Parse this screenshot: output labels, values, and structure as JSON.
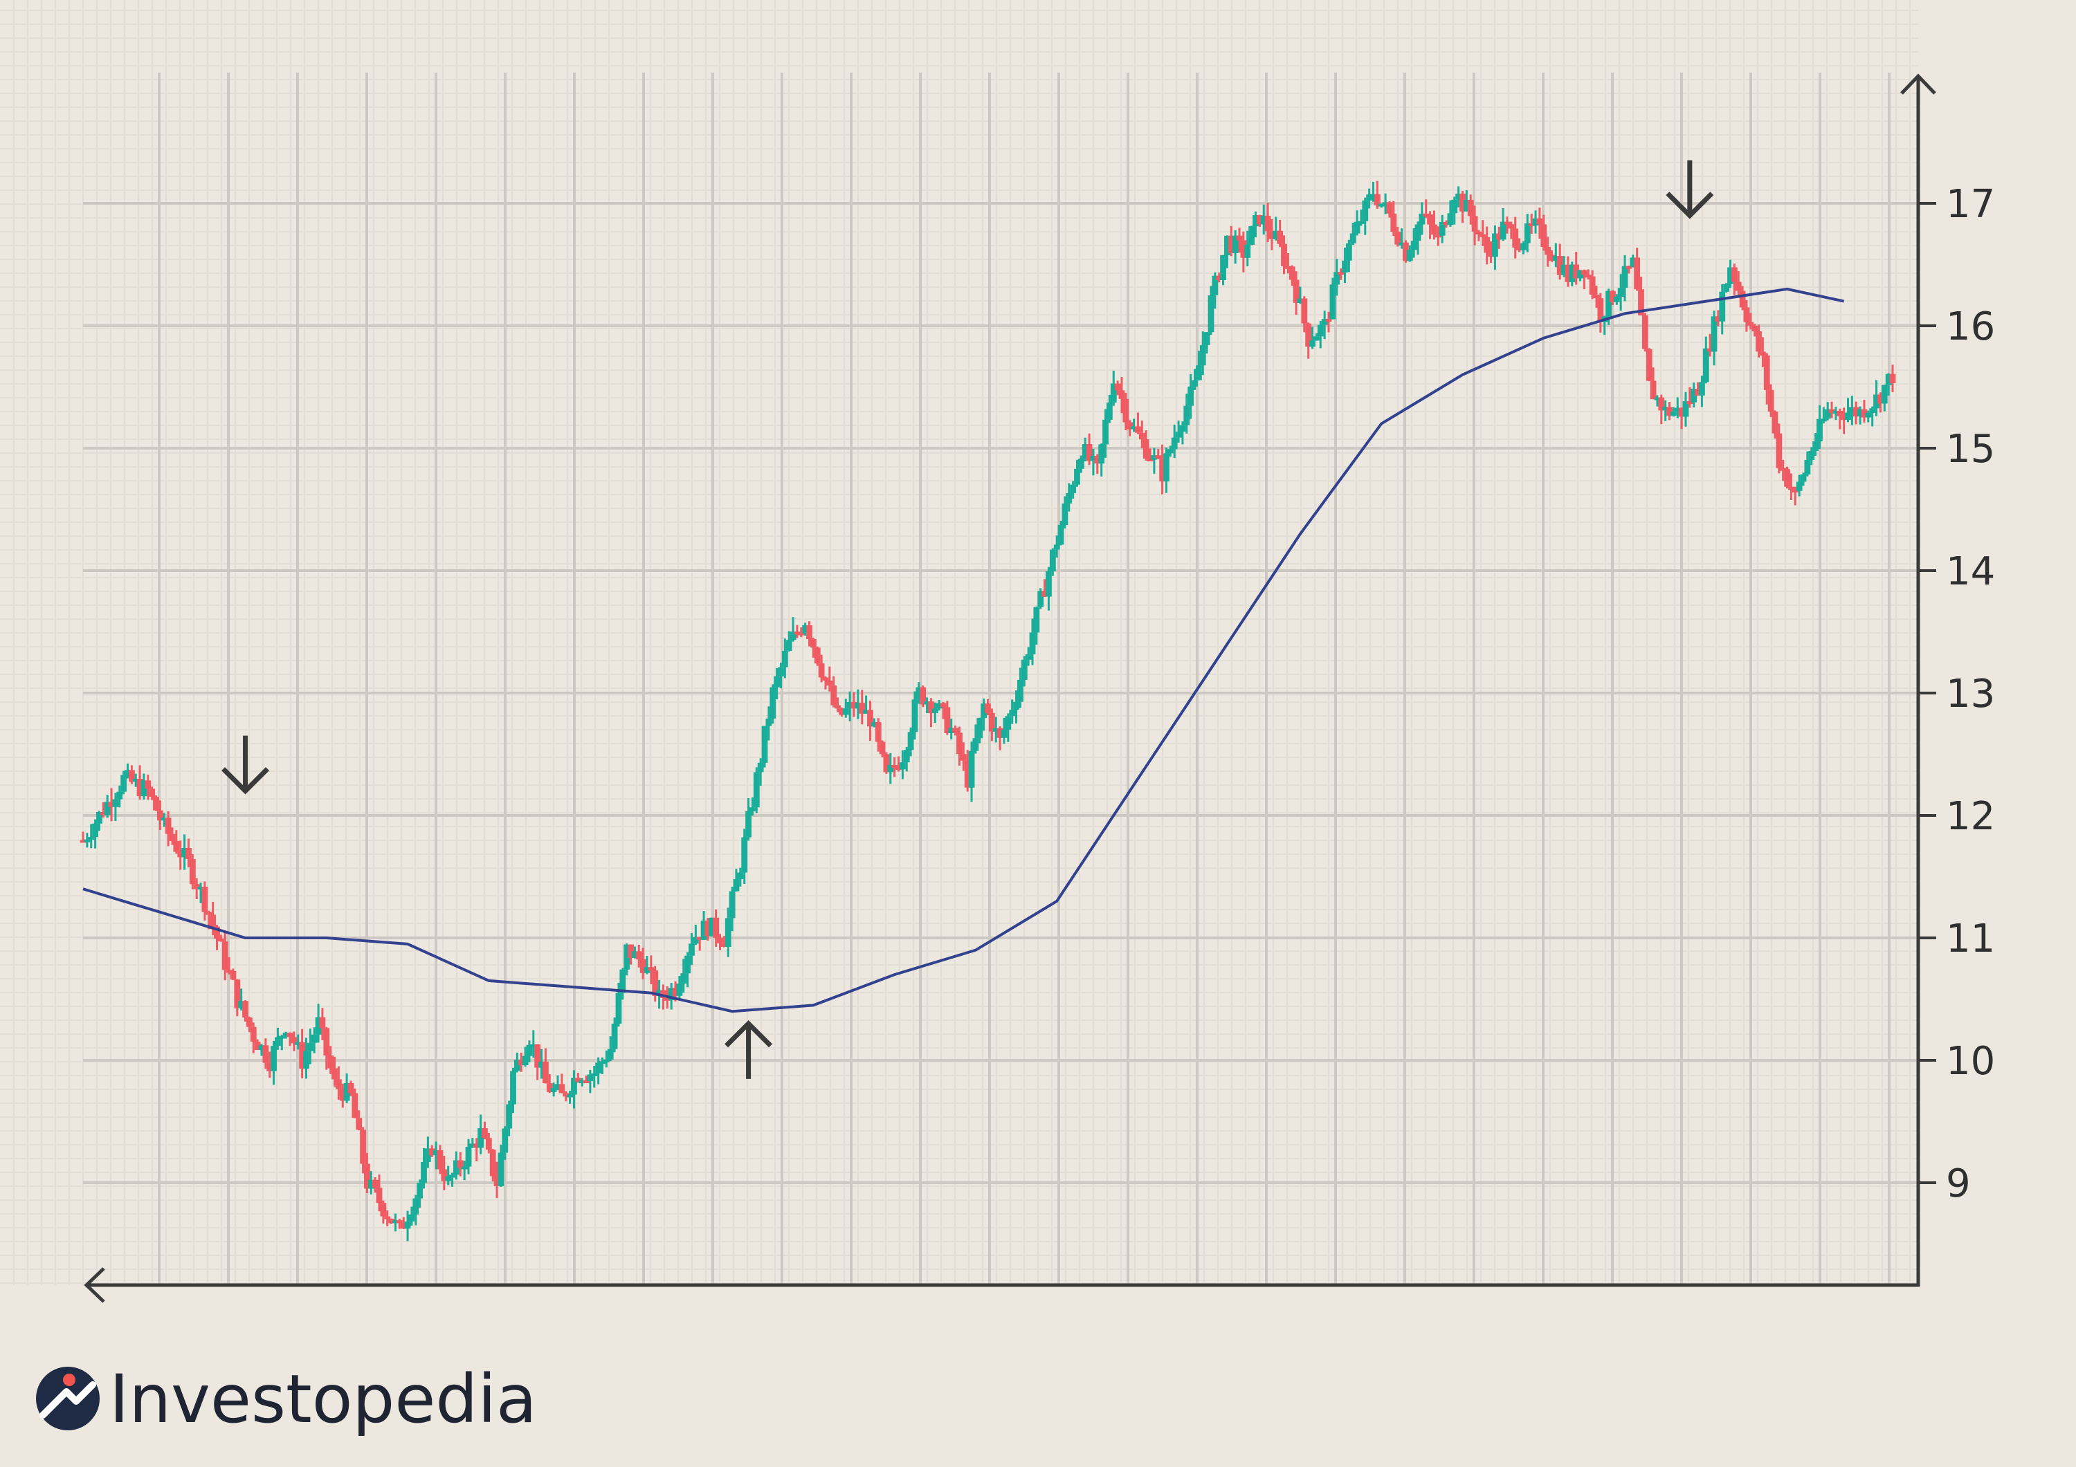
{
  "brand": {
    "name": "Investopedia"
  },
  "colors": {
    "background": "#ece7df",
    "minor_grid": "#e2ddd5",
    "major_grid": "#cdc8c1",
    "axis": "#3a3a3a",
    "up_candle": "#19ad9a",
    "down_candle": "#ef5b63",
    "moving_average": "#32428e",
    "logo_circle": "#1f2a44",
    "logo_accent": "#f2554d"
  },
  "chart_data": {
    "type": "candlestick",
    "title": "",
    "xlabel": "",
    "ylabel": "",
    "ylim": [
      8.2,
      17.9
    ],
    "y_ticks": [
      9,
      10,
      11,
      12,
      13,
      14,
      15,
      16,
      17
    ],
    "grid": true,
    "series": [
      {
        "kind": "price",
        "points": [
          [
            0,
            11.8
          ],
          [
            3,
            12.1
          ],
          [
            5,
            12.3
          ],
          [
            8,
            12.2
          ],
          [
            10,
            11.9
          ],
          [
            13,
            11.6
          ],
          [
            15,
            11.3
          ],
          [
            17,
            10.9
          ],
          [
            19,
            10.5
          ],
          [
            21,
            10.2
          ],
          [
            23,
            10.0
          ],
          [
            25,
            10.3
          ],
          [
            27,
            10.0
          ],
          [
            29,
            10.3
          ],
          [
            31,
            9.8
          ],
          [
            33,
            9.7
          ],
          [
            35,
            9.0
          ],
          [
            37,
            8.8
          ],
          [
            39,
            8.6
          ],
          [
            41,
            8.9
          ],
          [
            43,
            9.3
          ],
          [
            45,
            9.0
          ],
          [
            47,
            9.2
          ],
          [
            49,
            9.4
          ],
          [
            51,
            9.0
          ],
          [
            53,
            9.9
          ],
          [
            55,
            10.2
          ],
          [
            57,
            9.8
          ],
          [
            59,
            9.7
          ],
          [
            61,
            9.9
          ],
          [
            63,
            9.9
          ],
          [
            65,
            10.1
          ],
          [
            67,
            10.9
          ],
          [
            69,
            10.8
          ],
          [
            71,
            10.5
          ],
          [
            73,
            10.6
          ],
          [
            75,
            11.0
          ],
          [
            77,
            11.1
          ],
          [
            79,
            11.0
          ],
          [
            81,
            11.6
          ],
          [
            83,
            12.3
          ],
          [
            85,
            13.0
          ],
          [
            87,
            13.4
          ],
          [
            89,
            13.6
          ],
          [
            91,
            13.2
          ],
          [
            93,
            12.8
          ],
          [
            95,
            12.9
          ],
          [
            97,
            12.8
          ],
          [
            99,
            12.3
          ],
          [
            101,
            12.5
          ],
          [
            103,
            13.0
          ],
          [
            105,
            12.9
          ],
          [
            107,
            12.7
          ],
          [
            109,
            12.3
          ],
          [
            111,
            12.9
          ],
          [
            113,
            12.6
          ],
          [
            115,
            13.0
          ],
          [
            117,
            13.5
          ],
          [
            119,
            14.0
          ],
          [
            121,
            14.5
          ],
          [
            123,
            15.0
          ],
          [
            125,
            14.8
          ],
          [
            127,
            15.6
          ],
          [
            129,
            15.2
          ],
          [
            131,
            15.0
          ],
          [
            133,
            14.8
          ],
          [
            135,
            15.2
          ],
          [
            137,
            15.5
          ],
          [
            139,
            16.2
          ],
          [
            141,
            16.7
          ],
          [
            143,
            16.6
          ],
          [
            145,
            16.9
          ],
          [
            147,
            16.7
          ],
          [
            149,
            16.4
          ],
          [
            151,
            15.9
          ],
          [
            153,
            16.0
          ],
          [
            155,
            16.5
          ],
          [
            157,
            16.8
          ],
          [
            159,
            17.1
          ],
          [
            161,
            16.9
          ],
          [
            163,
            16.6
          ],
          [
            165,
            16.9
          ],
          [
            167,
            16.7
          ],
          [
            169,
            17.1
          ],
          [
            171,
            16.9
          ],
          [
            173,
            16.6
          ],
          [
            175,
            16.8
          ],
          [
            177,
            16.7
          ],
          [
            179,
            16.8
          ],
          [
            181,
            16.6
          ],
          [
            183,
            16.4
          ],
          [
            185,
            16.5
          ],
          [
            187,
            16.1
          ],
          [
            189,
            16.3
          ],
          [
            191,
            16.5
          ],
          [
            193,
            15.5
          ],
          [
            195,
            15.3
          ],
          [
            197,
            15.3
          ],
          [
            199,
            15.5
          ],
          [
            201,
            16.0
          ],
          [
            203,
            16.5
          ],
          [
            205,
            16.1
          ],
          [
            207,
            15.7
          ],
          [
            209,
            14.9
          ],
          [
            211,
            14.6
          ],
          [
            213,
            15.0
          ],
          [
            215,
            15.3
          ],
          [
            217,
            15.3
          ],
          [
            219,
            15.3
          ],
          [
            221,
            15.4
          ],
          [
            223,
            15.6
          ]
        ]
      },
      {
        "kind": "moving-average",
        "points": [
          [
            0,
            11.4
          ],
          [
            5,
            11.3
          ],
          [
            10,
            11.2
          ],
          [
            15,
            11.1
          ],
          [
            20,
            11.0
          ],
          [
            30,
            11.0
          ],
          [
            40,
            10.95
          ],
          [
            50,
            10.65
          ],
          [
            60,
            10.6
          ],
          [
            70,
            10.55
          ],
          [
            80,
            10.4
          ],
          [
            90,
            10.45
          ],
          [
            100,
            10.7
          ],
          [
            110,
            10.9
          ],
          [
            120,
            11.3
          ],
          [
            130,
            12.3
          ],
          [
            140,
            13.3
          ],
          [
            150,
            14.3
          ],
          [
            160,
            15.2
          ],
          [
            170,
            15.6
          ],
          [
            180,
            15.9
          ],
          [
            190,
            16.1
          ],
          [
            200,
            16.2
          ],
          [
            210,
            16.3
          ],
          [
            217,
            16.2
          ]
        ]
      }
    ],
    "annotations": [
      {
        "kind": "sell-arrow",
        "direction": "down",
        "x": 20,
        "y": 12.2
      },
      {
        "kind": "buy-arrow",
        "direction": "up",
        "x": 82,
        "y": 10.3
      },
      {
        "kind": "sell-arrow",
        "direction": "down",
        "x": 198,
        "y": 16.9
      }
    ]
  }
}
